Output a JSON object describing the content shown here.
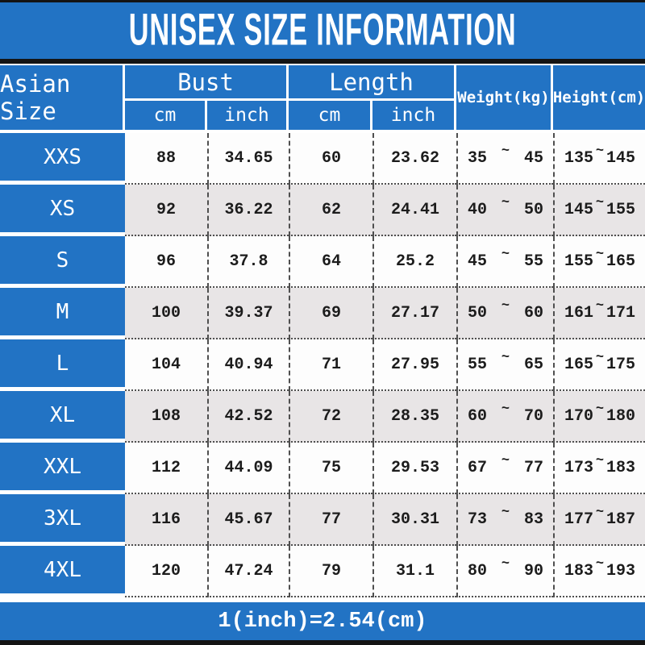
{
  "title": "UNISEX SIZE INFORMATION",
  "header": {
    "size": "Asian Size",
    "bust": "Bust",
    "length": "Length",
    "cm": "cm",
    "inch": "inch",
    "weight": "Weight(kg)",
    "height": "Height(cm)"
  },
  "tilde": "~",
  "rows": [
    {
      "size": "XXS",
      "bust_cm": "88",
      "bust_inch": "34.65",
      "length_cm": "60",
      "length_inch": "23.62",
      "weight_min": "35",
      "weight_max": "45",
      "height_min": "135",
      "height_max": "145"
    },
    {
      "size": "XS",
      "bust_cm": "92",
      "bust_inch": "36.22",
      "length_cm": "62",
      "length_inch": "24.41",
      "weight_min": "40",
      "weight_max": "50",
      "height_min": "145",
      "height_max": "155"
    },
    {
      "size": "S",
      "bust_cm": "96",
      "bust_inch": "37.8",
      "length_cm": "64",
      "length_inch": "25.2",
      "weight_min": "45",
      "weight_max": "55",
      "height_min": "155",
      "height_max": "165"
    },
    {
      "size": "M",
      "bust_cm": "100",
      "bust_inch": "39.37",
      "length_cm": "69",
      "length_inch": "27.17",
      "weight_min": "50",
      "weight_max": "60",
      "height_min": "161",
      "height_max": "171"
    },
    {
      "size": "L",
      "bust_cm": "104",
      "bust_inch": "40.94",
      "length_cm": "71",
      "length_inch": "27.95",
      "weight_min": "55",
      "weight_max": "65",
      "height_min": "165",
      "height_max": "175"
    },
    {
      "size": "XL",
      "bust_cm": "108",
      "bust_inch": "42.52",
      "length_cm": "72",
      "length_inch": "28.35",
      "weight_min": "60",
      "weight_max": "70",
      "height_min": "170",
      "height_max": "180"
    },
    {
      "size": "XXL",
      "bust_cm": "112",
      "bust_inch": "44.09",
      "length_cm": "75",
      "length_inch": "29.53",
      "weight_min": "67",
      "weight_max": "77",
      "height_min": "173",
      "height_max": "183"
    },
    {
      "size": "3XL",
      "bust_cm": "116",
      "bust_inch": "45.67",
      "length_cm": "77",
      "length_inch": "30.31",
      "weight_min": "73",
      "weight_max": "83",
      "height_min": "177",
      "height_max": "187"
    },
    {
      "size": "4XL",
      "bust_cm": "120",
      "bust_inch": "47.24",
      "length_cm": "79",
      "length_inch": "31.1",
      "weight_min": "80",
      "weight_max": "90",
      "height_min": "183",
      "height_max": "193"
    }
  ],
  "footer": "1(inch)=2.54(cm)",
  "colors": {
    "blue": "#2273c4",
    "row_alt": "#e8e5e6",
    "line": "#4f4f4f",
    "bar": "#141414"
  }
}
